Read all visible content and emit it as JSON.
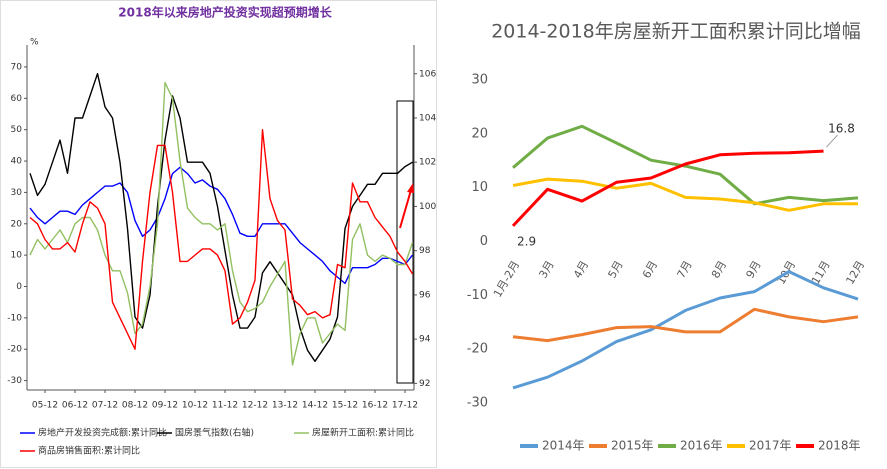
{
  "chart_data": [
    {
      "type": "line",
      "title": "2018年以来房地产投资实现超预期增长",
      "y_unit": "%",
      "categories": [
        null,
        null,
        "05-12",
        null,
        null,
        null,
        "06-12",
        null,
        null,
        null,
        "07-12",
        null,
        null,
        null,
        "08-12",
        null,
        null,
        null,
        "09-12",
        null,
        null,
        null,
        "10-12",
        null,
        null,
        null,
        "11-12",
        null,
        null,
        null,
        "12-12",
        null,
        null,
        null,
        "13-12",
        null,
        null,
        null,
        "14-12",
        null,
        null,
        null,
        "15-12",
        null,
        null,
        null,
        "16-12",
        null,
        null,
        null,
        "17-12",
        null
      ],
      "ylim": [
        -33,
        77
      ],
      "yticks": [
        -30,
        -20,
        -10,
        0,
        10,
        20,
        30,
        40,
        50,
        60,
        70
      ],
      "y2lim": [
        91.7,
        107.3
      ],
      "y2ticks": [
        92,
        94,
        96,
        98,
        100,
        102,
        104,
        106
      ],
      "legend": "bottom",
      "series": [
        {
          "name": "房地产开发投资完成额:累计同比",
          "color": "#0000ff",
          "values": [
            25,
            22,
            20,
            22,
            24,
            24,
            23,
            26,
            28,
            30,
            32,
            32,
            33,
            30,
            21,
            16,
            18,
            22,
            28,
            36,
            38,
            36,
            33,
            34,
            32,
            31,
            28,
            23,
            17,
            16,
            16,
            20,
            20,
            20,
            20,
            17,
            14,
            12,
            10,
            8,
            5,
            3,
            1,
            6,
            6,
            6,
            7,
            9,
            9,
            8,
            7,
            10
          ]
        },
        {
          "name": "国房景气指数(右轴)",
          "color": "#000000",
          "axis": "y2",
          "values": [
            101.5,
            100.5,
            101,
            102,
            103,
            101.5,
            104,
            104,
            105,
            106,
            104.5,
            104,
            102,
            99,
            95,
            94.5,
            96,
            100,
            103,
            105,
            104,
            102,
            102,
            102,
            101.5,
            100,
            98,
            96,
            94.5,
            94.5,
            95,
            97,
            97.5,
            97,
            96.5,
            96,
            94.5,
            93.5,
            93,
            93.5,
            94,
            95,
            99,
            100,
            100.5,
            101,
            101,
            101.5,
            101.5,
            101.5,
            101.8,
            102
          ]
        },
        {
          "name": "房屋新开工面积:累计同比",
          "color": "#92c060",
          "values": [
            10,
            15,
            12,
            15,
            18,
            14,
            20,
            22,
            22,
            18,
            10,
            5,
            5,
            -2,
            -15,
            -12,
            0,
            20,
            65,
            60,
            40,
            25,
            22,
            20,
            20,
            18,
            20,
            5,
            -5,
            -8,
            -7,
            -5,
            0,
            4,
            8,
            -25,
            -15,
            -10,
            -10,
            -18,
            -15,
            -12,
            -14,
            15,
            20,
            10,
            8,
            10,
            9,
            7,
            7,
            14
          ]
        },
        {
          "name": "商品房销售面积:累计同比",
          "color": "#ff0000",
          "values": [
            22,
            20,
            15,
            12,
            12,
            14,
            11,
            20,
            27,
            25,
            20,
            -5,
            -10,
            -15,
            -20,
            8,
            30,
            45,
            45,
            30,
            8,
            8,
            10,
            12,
            12,
            10,
            5,
            -12,
            -10,
            -5,
            2,
            50,
            28,
            21,
            18,
            -4,
            -6,
            -9,
            -8,
            -10,
            -9,
            7,
            6,
            33,
            27,
            27,
            22,
            19,
            16,
            11,
            8,
            4
          ]
        }
      ]
    },
    {
      "type": "line",
      "title": "2014-2018年房屋新开工面积累计同比增幅",
      "categories": [
        "1月-2月",
        "3月",
        "4月",
        "5月",
        "6月",
        "7月",
        "8月",
        "9月",
        "10月",
        "11月",
        "12月"
      ],
      "ylim": [
        -30,
        30
      ],
      "yticks": [
        -30,
        -20,
        -10,
        0,
        10,
        20,
        30
      ],
      "legend": "bottom",
      "series": [
        {
          "name": "2014年",
          "color": "#5b9bd5",
          "values": [
            -27.2,
            -25.2,
            -22.2,
            -18.6,
            -16.4,
            -12.8,
            -10.5,
            -9.3,
            -5.6,
            -8.6,
            -10.7
          ]
        },
        {
          "name": "2015年",
          "color": "#ed7d31",
          "values": [
            -17.7,
            -18.4,
            -17.3,
            -16,
            -15.8,
            -16.8,
            -16.8,
            -12.6,
            -14,
            -14.9,
            -14
          ]
        },
        {
          "name": "2016年",
          "color": "#70ad47",
          "values": [
            13.7,
            19.2,
            21.4,
            18.3,
            15.1,
            14,
            12.5,
            7,
            8.2,
            7.6,
            8.1
          ]
        },
        {
          "name": "2017年",
          "color": "#ffc000",
          "values": [
            10.4,
            11.6,
            11.2,
            9.9,
            10.8,
            8.2,
            7.9,
            7.2,
            5.8,
            7,
            7
          ]
        },
        {
          "name": "2018年",
          "color": "#ff0000",
          "values": [
            2.9,
            9.7,
            7.5,
            11,
            11.8,
            14.4,
            16.1,
            16.4,
            16.5,
            16.8,
            null
          ],
          "value_labels": [
            "2.9",
            null,
            null,
            null,
            null,
            null,
            null,
            null,
            null,
            "16.8",
            null
          ]
        }
      ]
    }
  ]
}
